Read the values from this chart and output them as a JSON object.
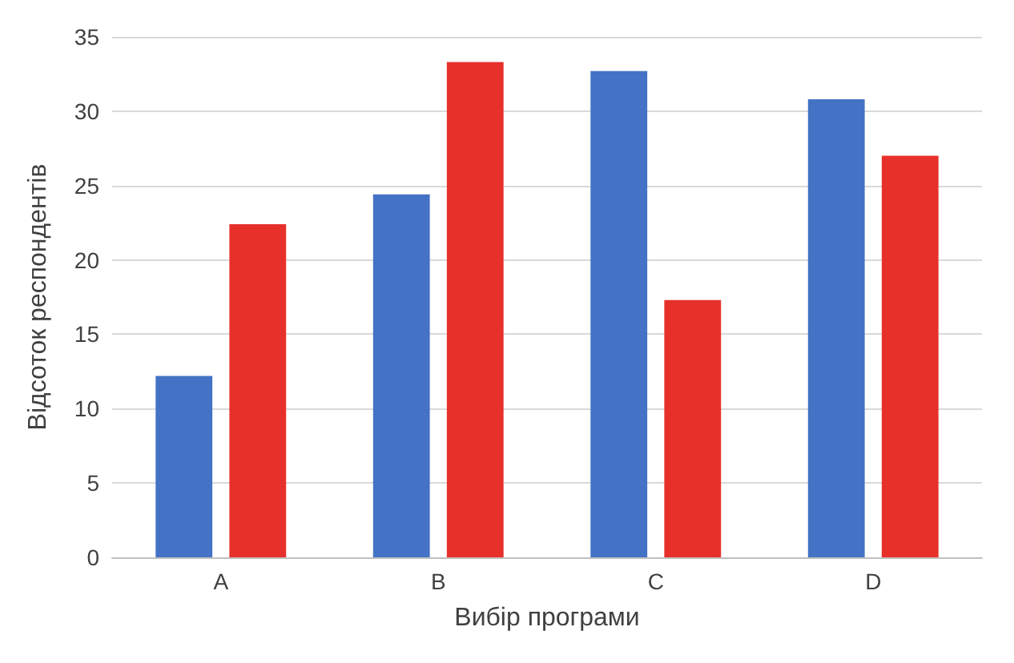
{
  "chart_data": {
    "type": "bar",
    "xlabel": "Вибір програми",
    "ylabel": "Відсоток респондентів",
    "categories": [
      "A",
      "B",
      "C",
      "D"
    ],
    "series": [
      {
        "color": "#4472c4",
        "values": [
          12.2,
          24.4,
          32.7,
          30.8
        ]
      },
      {
        "color": "#e8302a",
        "values": [
          22.4,
          33.3,
          17.3,
          27.0
        ]
      }
    ],
    "ylim": [
      0,
      35
    ],
    "yticks": [
      0,
      5,
      10,
      15,
      20,
      25,
      30,
      35
    ],
    "grid": "y"
  }
}
